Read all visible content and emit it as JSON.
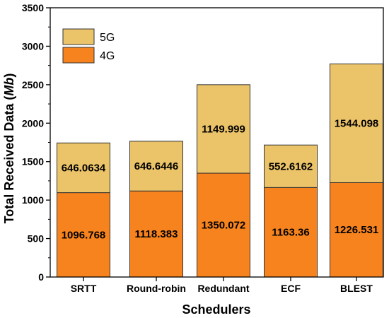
{
  "chart_data": {
    "type": "bar",
    "stacked": true,
    "categories": [
      "SRTT",
      "Round-robin",
      "Redundant",
      "ECF",
      "BLEST"
    ],
    "series": [
      {
        "name": "4G",
        "values": [
          1096.768,
          1118.383,
          1350.072,
          1163.36,
          1226.531
        ],
        "labels": [
          "1096.768",
          "1118.383",
          "1350.072",
          "1163.36",
          "1226.531"
        ],
        "color": "#f7831e"
      },
      {
        "name": "5G",
        "values": [
          646.0634,
          646.6446,
          1149.999,
          552.6162,
          1544.098
        ],
        "labels": [
          "646.0634",
          "646.6446",
          "1149.999",
          "552.6162",
          "1544.098"
        ],
        "color": "#ebc369"
      }
    ],
    "title": "",
    "xlabel": "Schedulers",
    "ylabel_main": "Total Received Data (",
    "ylabel_unit": "Mb",
    "ylabel_end": ")",
    "ylim": [
      0,
      3500
    ],
    "yticks": [
      "0",
      "500",
      "1000",
      "1500",
      "2000",
      "2500",
      "3000",
      "3500"
    ],
    "grid": false,
    "legend_position": "top-left",
    "legend_order": [
      "5G",
      "4G"
    ],
    "edge_color": "#333333"
  }
}
